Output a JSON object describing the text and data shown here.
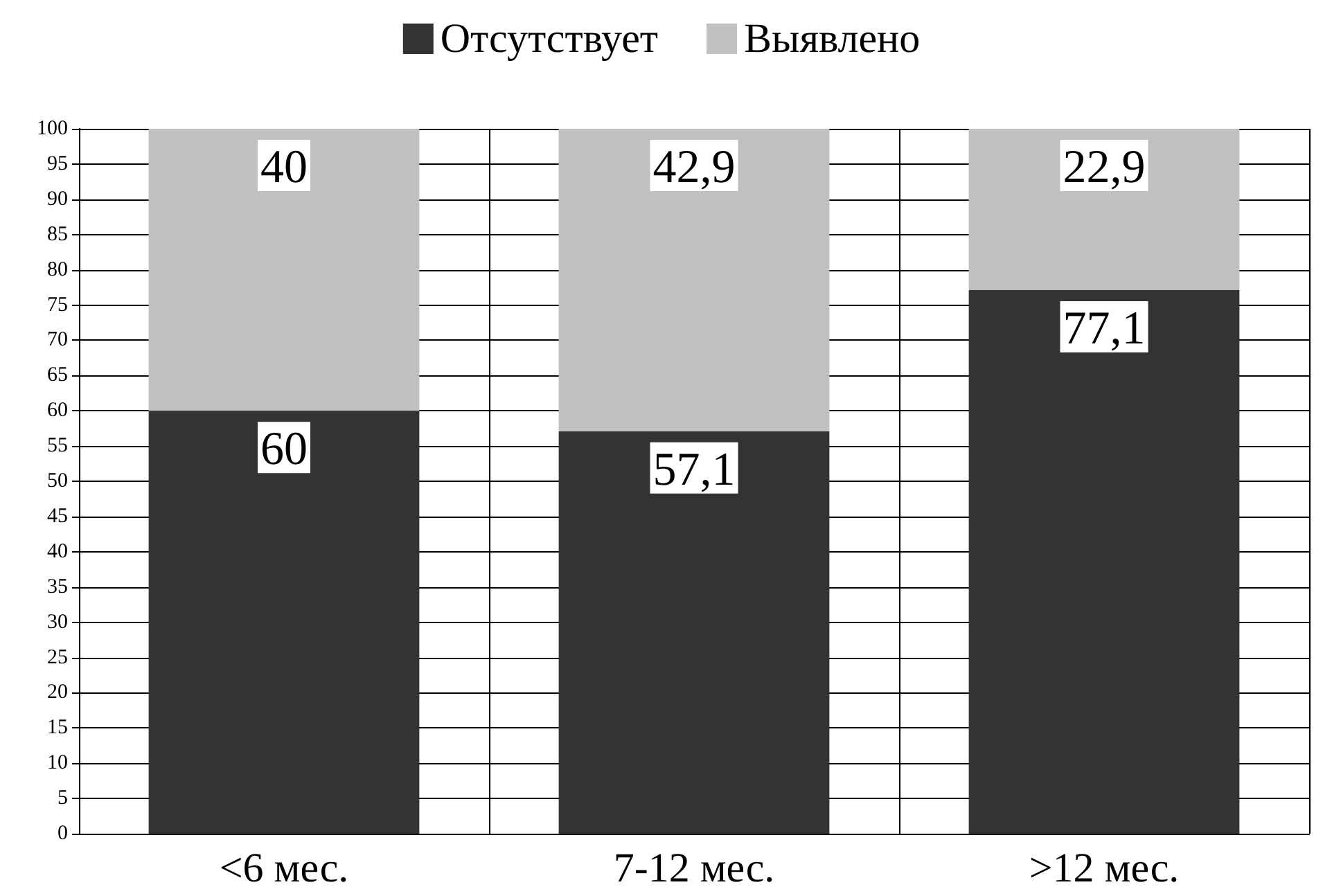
{
  "chart_data": {
    "type": "bar",
    "stacked": true,
    "categories": [
      "<6 мес.",
      "7-12 мес.",
      ">12 мес."
    ],
    "series": [
      {
        "name": "Отсутствует",
        "color": "#333333",
        "values": [
          60,
          57.1,
          77.1
        ],
        "value_labels": [
          "60",
          "57,1",
          "77,1"
        ]
      },
      {
        "name": "Выявлено",
        "color": "#c0c0c0",
        "values": [
          40,
          42.9,
          22.9
        ],
        "value_labels": [
          "40",
          "42,9",
          "22,9"
        ]
      }
    ],
    "ylim": [
      0,
      100
    ],
    "yticks": [
      0,
      5,
      10,
      15,
      20,
      25,
      30,
      35,
      40,
      45,
      50,
      55,
      60,
      65,
      70,
      75,
      80,
      85,
      90,
      95,
      100
    ],
    "grid": true,
    "legend": "top"
  }
}
